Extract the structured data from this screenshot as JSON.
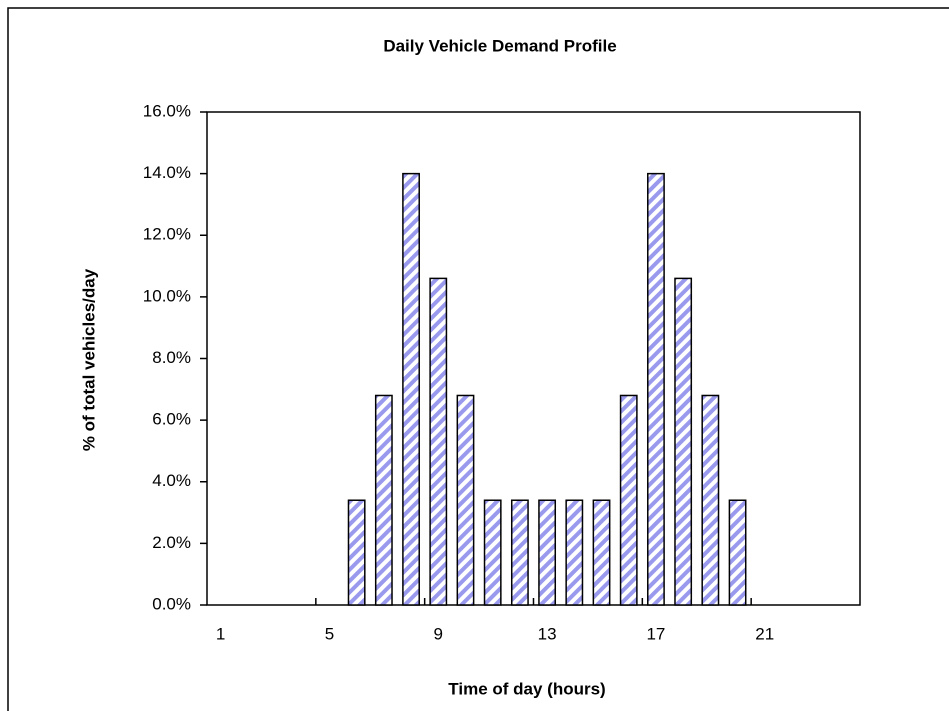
{
  "chart_data": {
    "type": "bar",
    "title": "Daily Vehicle Demand Profile",
    "x_label": "Time of day (hours)",
    "y_label": "% of total vehicles/day",
    "categories": [
      1,
      null,
      null,
      null,
      5,
      null,
      null,
      null,
      9,
      null,
      null,
      null,
      13,
      null,
      null,
      null,
      17,
      null,
      null,
      null,
      21,
      null,
      null,
      null
    ],
    "values": [
      0,
      0,
      0,
      0,
      0,
      3.4,
      6.8,
      14.0,
      10.6,
      6.8,
      3.4,
      3.4,
      3.4,
      3.4,
      3.4,
      6.8,
      14.0,
      10.6,
      6.8,
      3.4,
      0,
      0,
      0,
      0
    ],
    "color": "#9999ee",
    "ylim": [
      0,
      16
    ],
    "yticks": [
      {
        "value": 0,
        "label": "0.0%"
      },
      {
        "value": 2,
        "label": "2.0%"
      },
      {
        "value": 4,
        "label": "4.0%"
      },
      {
        "value": 6,
        "label": "6.0%"
      },
      {
        "value": 8,
        "label": "8.0%"
      },
      {
        "value": 10,
        "label": "10.0%"
      },
      {
        "value": 12,
        "label": "12.0%"
      },
      {
        "value": 14,
        "label": "14.0%"
      },
      {
        "value": 16,
        "label": "16.0%"
      }
    ],
    "grid": false
  }
}
